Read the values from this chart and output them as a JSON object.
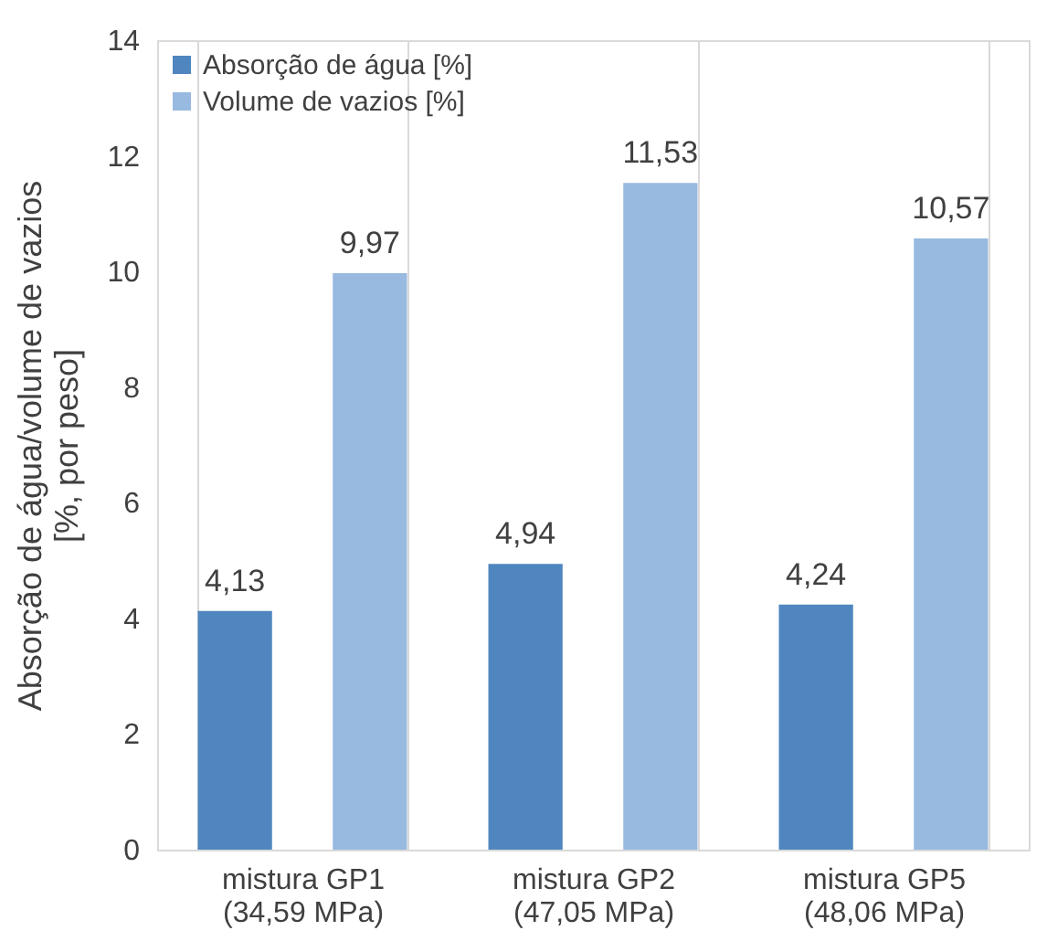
{
  "chart_data": {
    "type": "bar",
    "ylabel": "Absorção de água/volume de vazios\n[%, por peso]",
    "categories": [
      "mistura GP1\n(34,59 MPa)",
      "mistura GP2\n(47,05 MPa)",
      "mistura GP5\n(48,06 MPa)"
    ],
    "series": [
      {
        "name": "Absorção de água [%]",
        "color": "#4f86bf",
        "values": [
          4.13,
          4.94,
          4.24
        ],
        "value_labels": [
          "4,13",
          "4,94",
          "4,24"
        ]
      },
      {
        "name": "Volume de vazios [%]",
        "color": "#98b9e0",
        "values": [
          9.97,
          11.53,
          10.57
        ],
        "value_labels": [
          "9,97",
          "11,53",
          "10,57"
        ]
      }
    ],
    "ylim": [
      0,
      14
    ],
    "yticks": [
      0,
      2,
      4,
      6,
      8,
      10,
      12,
      14
    ],
    "grid": "x",
    "legend": "top left"
  }
}
